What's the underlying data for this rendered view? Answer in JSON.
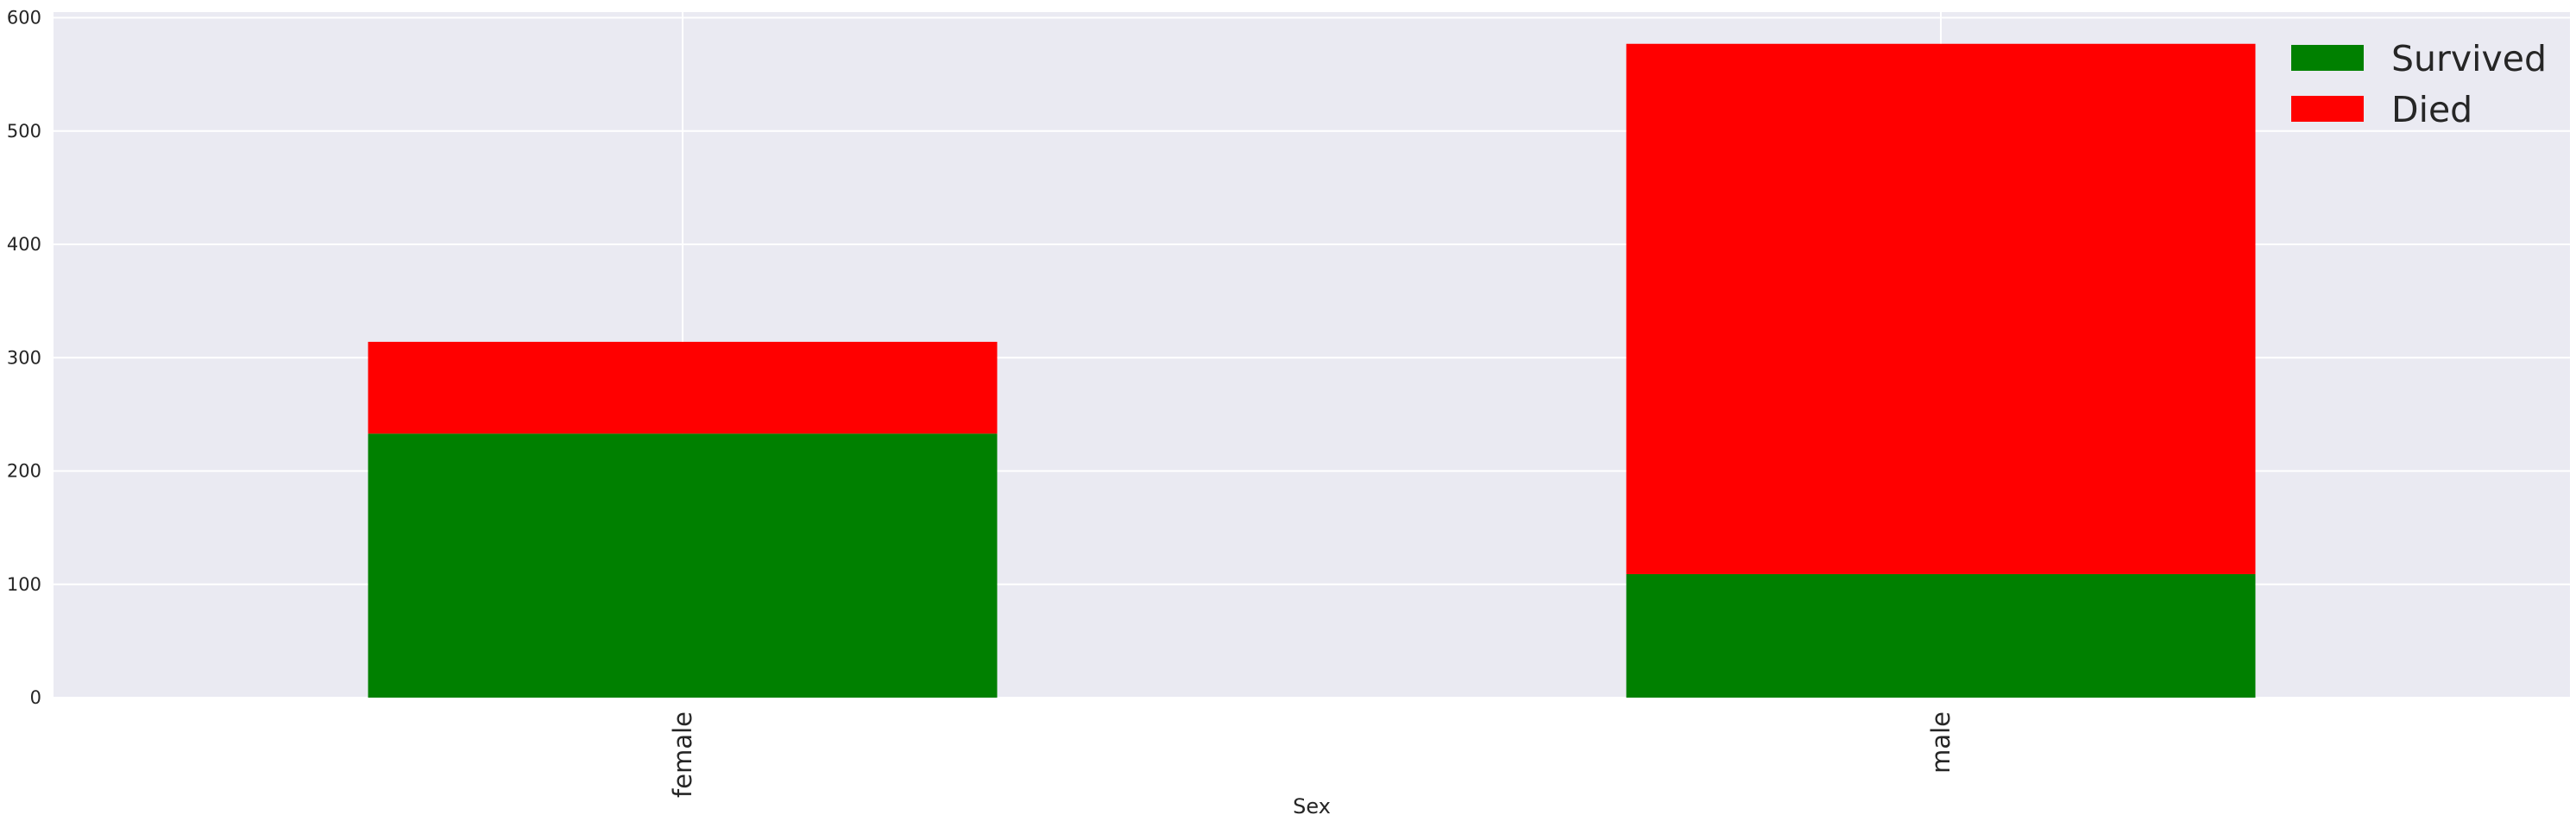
{
  "chart_data": {
    "type": "bar",
    "stacked": true,
    "categories": [
      "female",
      "male"
    ],
    "series": [
      {
        "name": "Survived",
        "values": [
          233,
          109
        ],
        "color": "#008000"
      },
      {
        "name": "Died",
        "values": [
          81,
          468
        ],
        "color": "#ff0000"
      }
    ],
    "title": "",
    "xlabel": "Sex",
    "ylabel": "",
    "ylim": [
      0,
      605
    ],
    "yticks": [
      0,
      100,
      200,
      300,
      400,
      500,
      600
    ],
    "grid": true,
    "legend_position": "top-right",
    "background_color": "#eaeaf2",
    "grid_color": "#ffffff"
  }
}
